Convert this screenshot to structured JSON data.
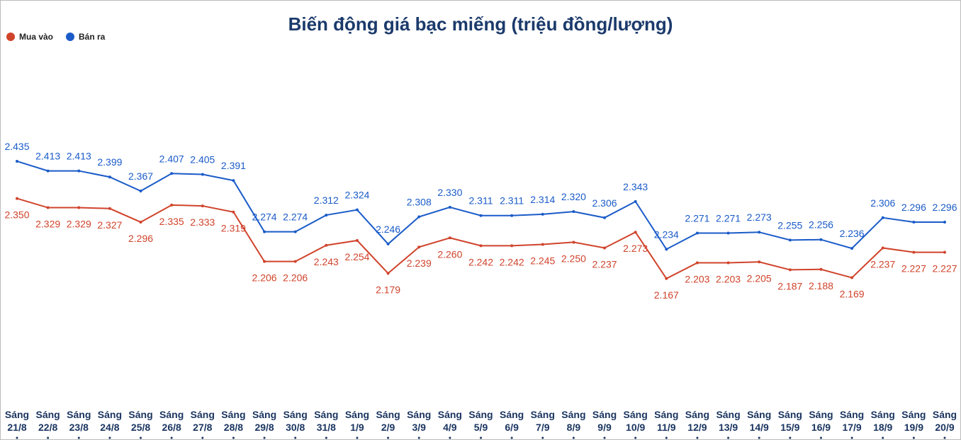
{
  "chart_data": {
    "type": "line",
    "title": "Biến động giá bạc miếng (triệu đồng/lượng)",
    "categories": [
      "Sáng 21/8",
      "Sáng 22/8",
      "Sáng 23/8",
      "Sáng 24/8",
      "Sáng 25/8",
      "Sáng 26/8",
      "Sáng 27/8",
      "Sáng 28/8",
      "Sáng 29/8",
      "Sáng 30/8",
      "Sáng 31/8",
      "Sáng 1/9",
      "Sáng 2/9",
      "Sáng 3/9",
      "Sáng 4/9",
      "Sáng 5/9",
      "Sáng 6/9",
      "Sáng 7/9",
      "Sáng 8/9",
      "Sáng 9/9",
      "Sáng 10/9",
      "Sáng 11/9",
      "Sáng 12/9",
      "Sáng 13/9",
      "Sáng 14/9",
      "Sáng 15/9",
      "Sáng 16/9",
      "Sáng 17/9",
      "Sáng 18/9",
      "Sáng 19/9",
      "Sáng 20/9"
    ],
    "series": [
      {
        "name": "Mua vào",
        "color": "#d0432b",
        "values": [
          2.35,
          2.329,
          2.329,
          2.327,
          2.296,
          2.335,
          2.333,
          2.319,
          2.206,
          2.206,
          2.243,
          2.254,
          2.179,
          2.239,
          2.26,
          2.242,
          2.242,
          2.245,
          2.25,
          2.237,
          2.273,
          2.167,
          2.203,
          2.203,
          2.205,
          2.187,
          2.188,
          2.169,
          2.237,
          2.227,
          2.227
        ],
        "value_labels": [
          "2.350",
          "2.329",
          "2.329",
          "2.327",
          "2.296",
          "2.335",
          "2.333",
          "2.319",
          "2.206",
          "2.206",
          "2.243",
          "2.254",
          "2.179",
          "2.239",
          "2.260",
          "2.242",
          "2.242",
          "2.245",
          "2.250",
          "2.237",
          "2.273",
          "2.167",
          "2.203",
          "2.203",
          "2.205",
          "2.187",
          "2.188",
          "2.169",
          "2.237",
          "2.227",
          "2.227"
        ]
      },
      {
        "name": "Bán ra",
        "color": "#1a5bc8",
        "values": [
          2.435,
          2.413,
          2.413,
          2.399,
          2.367,
          2.407,
          2.405,
          2.391,
          2.274,
          2.274,
          2.312,
          2.324,
          2.246,
          2.308,
          2.33,
          2.311,
          2.311,
          2.314,
          2.32,
          2.306,
          2.343,
          2.234,
          2.271,
          2.271,
          2.273,
          2.255,
          2.256,
          2.236,
          2.306,
          2.296,
          2.296
        ],
        "value_labels": [
          "2.435",
          "2.413",
          "2.413",
          "2.399",
          "2.367",
          "2.407",
          "2.405",
          "2.391",
          "2.274",
          "2.274",
          "2.312",
          "2.324",
          "2.246",
          "2.308",
          "2.330",
          "2.311",
          "2.311",
          "2.314",
          "2.320",
          "2.306",
          "2.343",
          "2.234",
          "2.271",
          "2.271",
          "2.273",
          "2.255",
          "2.256",
          "2.236",
          "2.306",
          "2.296",
          "2.296"
        ]
      }
    ],
    "ylim": [
      1.9,
      2.7
    ],
    "legend": "top-left"
  }
}
